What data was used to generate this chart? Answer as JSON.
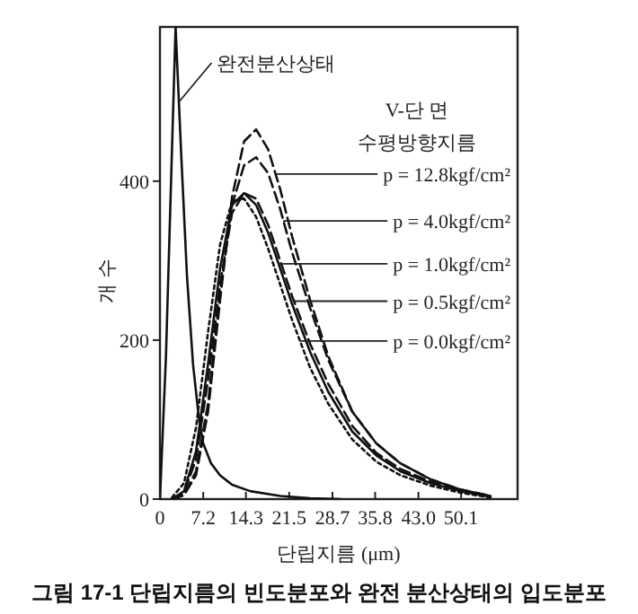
{
  "chart_data": {
    "type": "line",
    "title": "그림 17-1 단립지름의 빈도분포와 완전 분산상태의 입도분포",
    "xlabel": "단립지름 (μm)",
    "ylabel": "개 수",
    "xlim": [
      0,
      59.5
    ],
    "ylim": [
      0,
      594
    ],
    "xticks": [
      0,
      7.2,
      14.3,
      21.5,
      28.7,
      35.8,
      {
        "value": 43,
        "label": "43.0"
      },
      50.1
    ],
    "yticks": [
      0,
      200,
      400
    ],
    "grid": false,
    "annotations": [
      {
        "text": "완전분산상태",
        "x": 3.2,
        "y": 500
      },
      "V-단 면",
      "수평방향지름",
      {
        "text": "p = 12.8kgf/cm²",
        "x": 19.2,
        "y": 409
      },
      {
        "text": "p = 4.0kgf/cm²",
        "x": 20.5,
        "y": 350
      },
      {
        "text": "p = 1.0kgf/cm²",
        "x": 19.7,
        "y": 296
      },
      {
        "text": "p = 0.5kgf/cm²",
        "x": 22.3,
        "y": 249
      },
      {
        "text": "p = 0.0kgf/cm²",
        "x": 23.3,
        "y": 199
      }
    ],
    "series": [
      {
        "color": "#111111",
        "line_style": "solid",
        "x": [
          0,
          1,
          2.6,
          3.5,
          4.5,
          5.5,
          6.5,
          7.2,
          8.5,
          10,
          12,
          15,
          20,
          25,
          30
        ],
        "values": [
          0,
          180,
          594,
          440,
          280,
          170,
          100,
          70,
          45,
          30,
          18,
          10,
          4,
          1,
          0
        ]
      },
      {
        "color": "#111111",
        "line_style": "dashed",
        "x": [
          2,
          4,
          6,
          8,
          10,
          12,
          14,
          16,
          18,
          20,
          22,
          25,
          28,
          32,
          36,
          40,
          45,
          50,
          55
        ],
        "values": [
          0,
          5,
          30,
          110,
          250,
          380,
          450,
          465,
          440,
          390,
          330,
          250,
          180,
          110,
          70,
          45,
          25,
          12,
          4
        ]
      },
      {
        "color": "#111111",
        "line_style": "dashed",
        "x": [
          2,
          4,
          6,
          8,
          10,
          12,
          14,
          16,
          18,
          20,
          22,
          25,
          28,
          32,
          36,
          40,
          45,
          50,
          55
        ],
        "values": [
          0,
          5,
          35,
          120,
          260,
          370,
          420,
          430,
          410,
          365,
          310,
          240,
          175,
          110,
          70,
          45,
          25,
          12,
          4
        ]
      },
      {
        "color": "#111111",
        "line_style": "solid",
        "x": [
          2,
          4,
          6,
          8,
          10,
          12,
          14,
          16,
          18,
          20,
          22,
          25,
          28,
          32,
          36,
          40,
          45,
          50,
          55
        ],
        "values": [
          0,
          10,
          60,
          170,
          290,
          370,
          385,
          370,
          335,
          290,
          245,
          185,
          135,
          85,
          55,
          35,
          20,
          10,
          3
        ]
      },
      {
        "color": "#111111",
        "line_style": "dashed",
        "x": [
          2,
          4,
          6,
          8,
          10,
          12,
          14,
          16,
          18,
          20,
          22,
          25,
          28,
          32,
          36,
          40,
          45,
          50,
          55
        ],
        "values": [
          0,
          8,
          50,
          150,
          270,
          360,
          385,
          378,
          345,
          300,
          255,
          195,
          145,
          92,
          58,
          38,
          22,
          11,
          3
        ]
      },
      {
        "color": "#111111",
        "line_style": "dotted",
        "x": [
          2,
          4,
          6,
          8,
          10,
          12,
          14,
          16,
          18,
          20,
          22,
          25,
          28,
          32,
          36,
          40,
          45,
          50,
          55
        ],
        "values": [
          2,
          20,
          90,
          210,
          320,
          375,
          378,
          355,
          315,
          270,
          225,
          165,
          120,
          75,
          47,
          30,
          17,
          8,
          2
        ]
      }
    ]
  }
}
